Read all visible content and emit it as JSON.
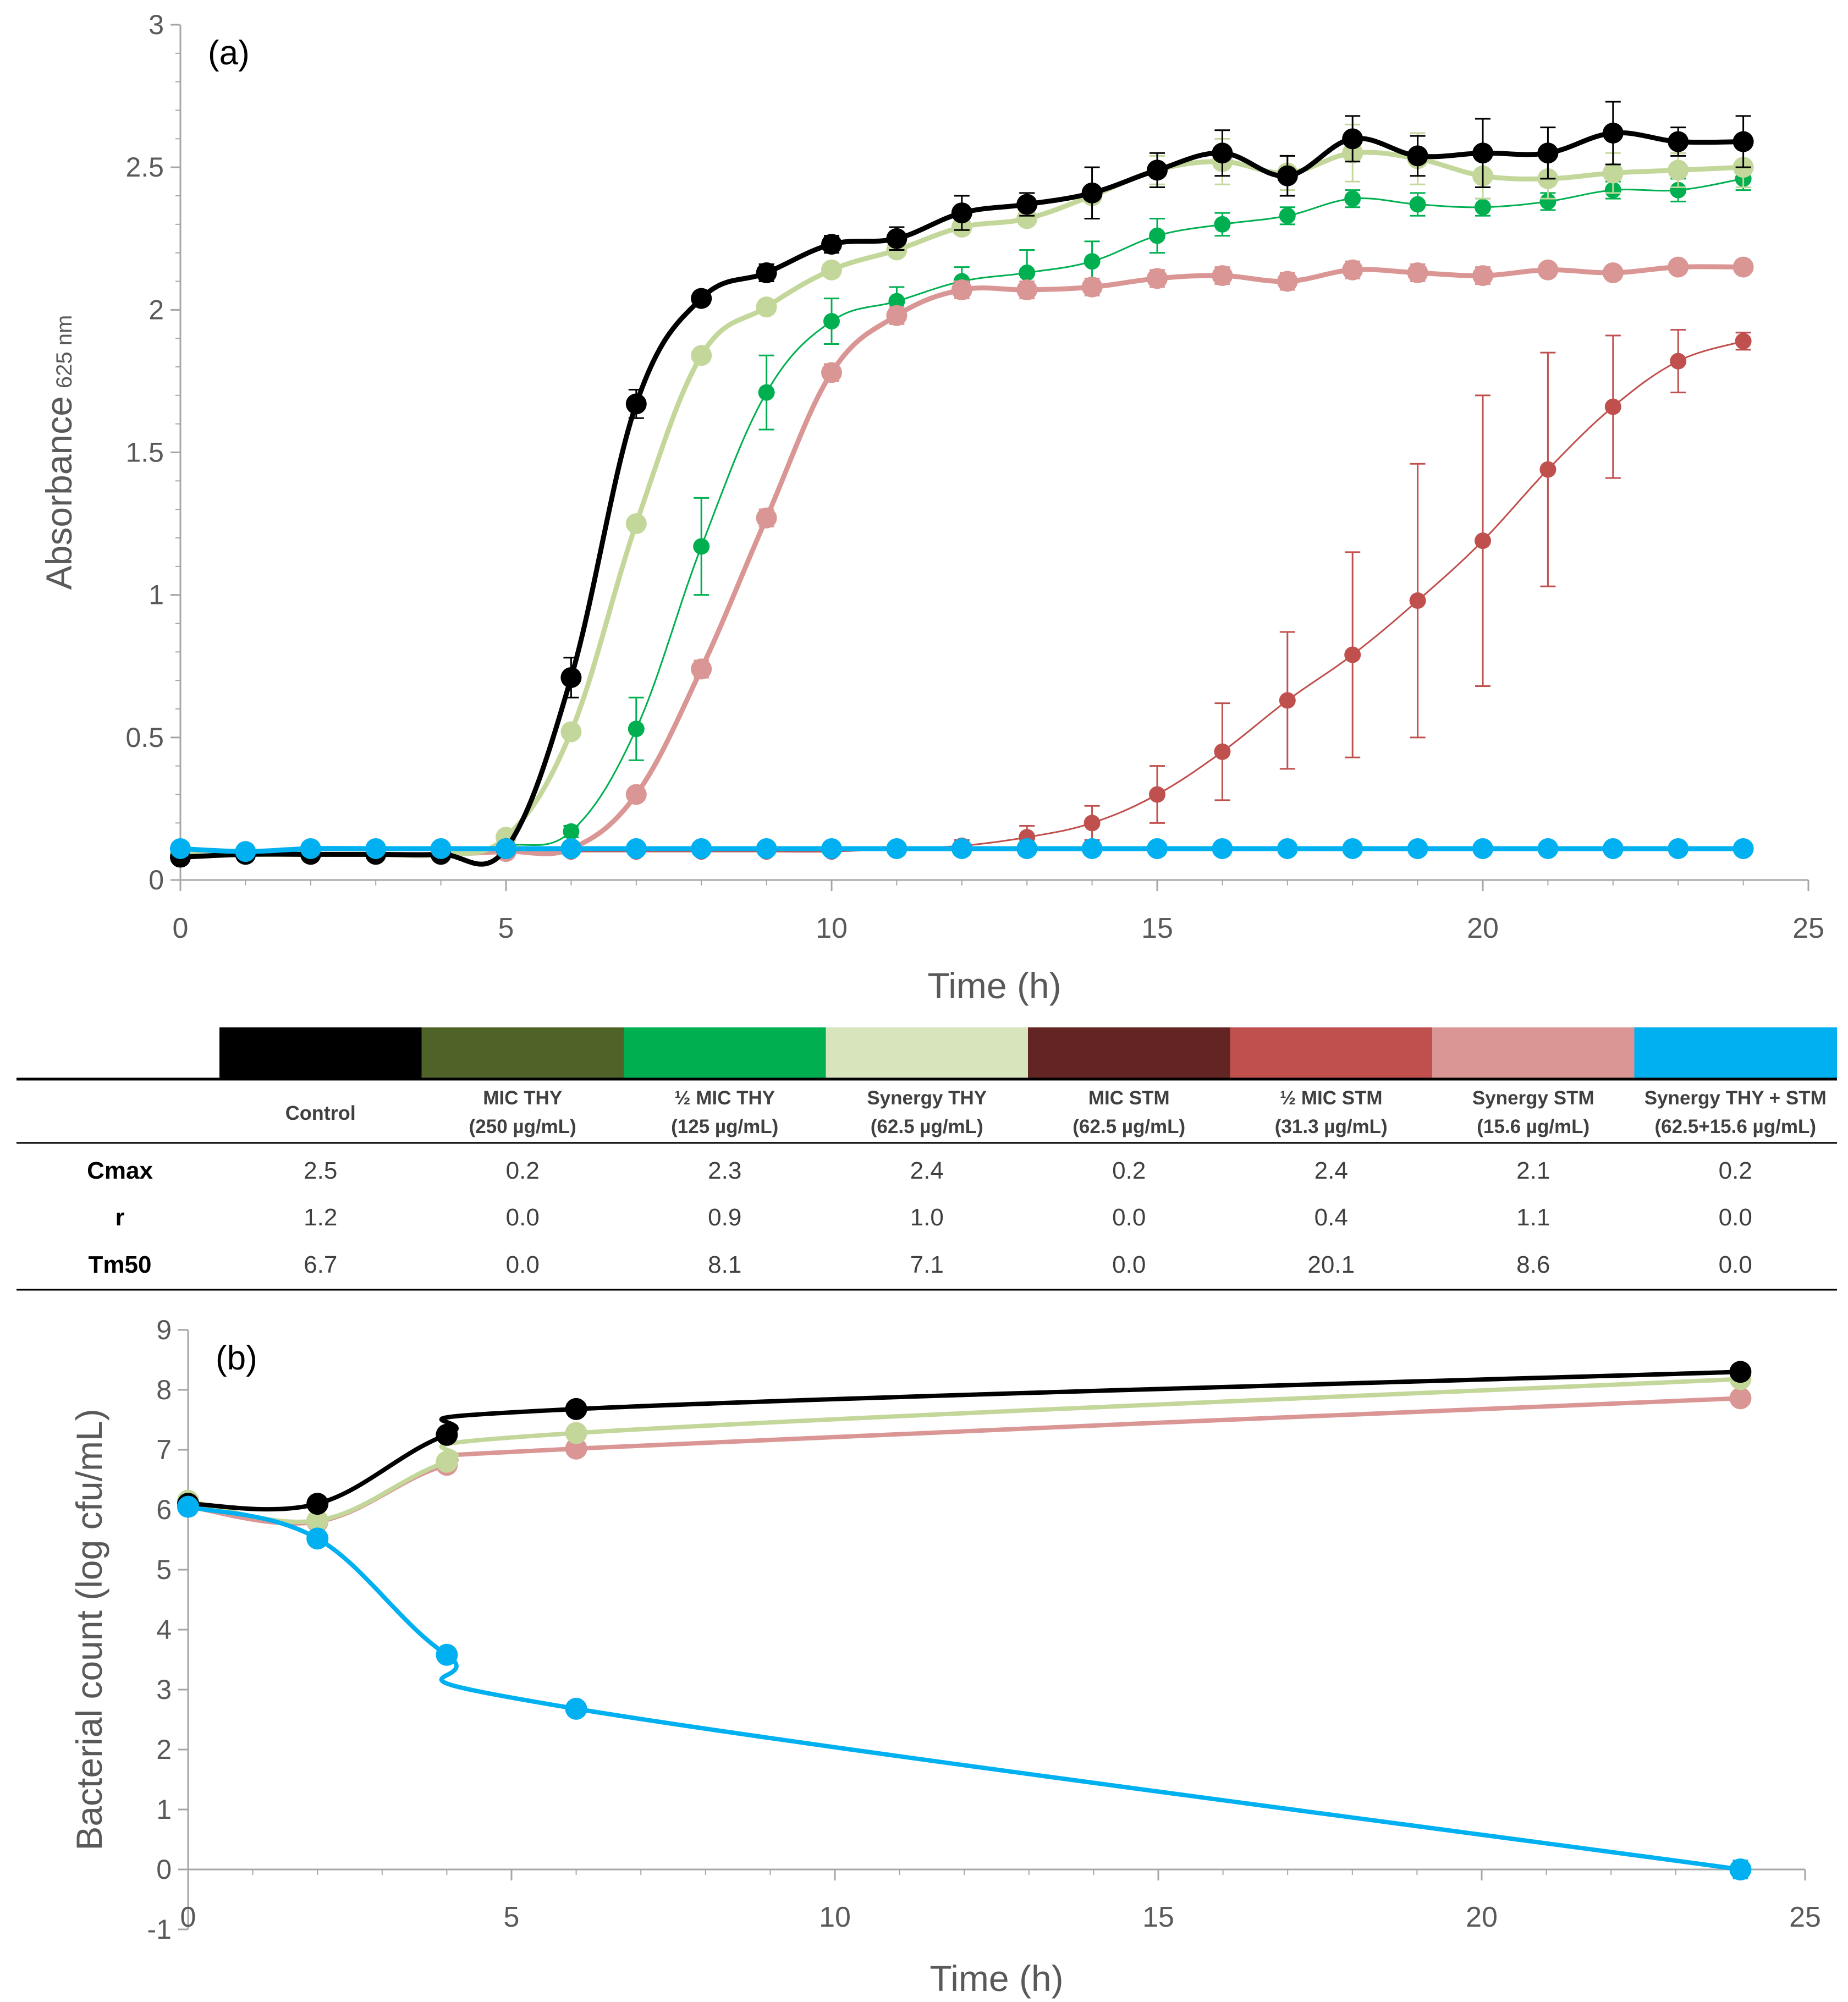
{
  "chart_data": [
    {
      "type": "line",
      "panel_label": "(a)",
      "xlabel": "Time (h)",
      "ylabel": "Absorbance",
      "ylabel_sub": "625 nm",
      "xlim": [
        0,
        25
      ],
      "ylim": [
        0,
        3
      ],
      "xticks": [
        "0",
        "5",
        "10",
        "15",
        "20",
        "25"
      ],
      "yticks": [
        "0",
        "0.5",
        "1",
        "1.5",
        "2",
        "2.5",
        "3"
      ],
      "x": [
        0,
        1,
        2,
        3,
        4,
        5,
        6,
        7,
        8,
        9,
        10,
        11,
        12,
        13,
        14,
        15,
        16,
        17,
        18,
        19,
        20,
        21,
        22,
        23,
        24
      ],
      "series": [
        {
          "name": "Half MIC STM",
          "color": "#c0504d",
          "thick": false,
          "marker": 15,
          "values": [
            0.09,
            0.09,
            0.09,
            0.09,
            0.09,
            0.1,
            0.1,
            0.1,
            0.1,
            0.1,
            0.1,
            0.11,
            0.12,
            0.15,
            0.2,
            0.3,
            0.45,
            0.63,
            0.79,
            0.98,
            1.19,
            1.44,
            1.66,
            1.82,
            1.89
          ],
          "errors": [
            0,
            0,
            0,
            0,
            0,
            0,
            0,
            0,
            0,
            0,
            0,
            0,
            0.02,
            0.04,
            0.06,
            0.1,
            0.17,
            0.24,
            0.36,
            0.48,
            0.51,
            0.41,
            0.25,
            0.11,
            0.03
          ]
        },
        {
          "name": "Half MIC THY",
          "color": "#00b050",
          "thick": false,
          "marker": 15,
          "values": [
            0.09,
            0.09,
            0.09,
            0.09,
            0.09,
            0.12,
            0.17,
            0.53,
            1.17,
            1.71,
            1.96,
            2.03,
            2.1,
            2.13,
            2.17,
            2.26,
            2.3,
            2.33,
            2.39,
            2.37,
            2.36,
            2.38,
            2.42,
            2.42,
            2.46
          ],
          "errors": [
            0,
            0,
            0,
            0,
            0,
            0,
            0.02,
            0.11,
            0.17,
            0.13,
            0.08,
            0.05,
            0.05,
            0.08,
            0.07,
            0.06,
            0.04,
            0.03,
            0.03,
            0.04,
            0.03,
            0.03,
            0.03,
            0.04,
            0.04
          ]
        },
        {
          "name": "Synergy STM",
          "color": "#da9694",
          "thick": true,
          "marker": 19,
          "values": [
            0.09,
            0.09,
            0.09,
            0.09,
            0.09,
            0.1,
            0.11,
            0.3,
            0.74,
            1.27,
            1.78,
            1.98,
            2.07,
            2.07,
            2.08,
            2.11,
            2.12,
            2.1,
            2.14,
            2.13,
            2.12,
            2.14,
            2.13,
            2.15,
            2.15
          ],
          "errors": [
            0,
            0,
            0,
            0,
            0,
            0,
            0,
            0,
            0.03,
            0.03,
            0.03,
            0.03,
            0.03,
            0.03,
            0.03,
            0.03,
            0.03,
            0.03,
            0.03,
            0.03,
            0.03,
            0.02,
            0.02,
            0.02,
            0.02
          ]
        },
        {
          "name": "Synergy THY",
          "color": "#c4d79b",
          "thick": true,
          "marker": 19,
          "values": [
            0.09,
            0.09,
            0.09,
            0.09,
            0.09,
            0.15,
            0.52,
            1.25,
            1.84,
            2.01,
            2.14,
            2.21,
            2.29,
            2.32,
            2.4,
            2.49,
            2.52,
            2.48,
            2.55,
            2.53,
            2.47,
            2.46,
            2.48,
            2.49,
            2.5
          ],
          "errors": [
            0,
            0,
            0,
            0,
            0,
            0,
            0,
            0,
            0,
            0,
            0,
            0,
            0,
            0,
            0,
            0.05,
            0.08,
            0.06,
            0.1,
            0.09,
            0.08,
            0.07,
            0.07,
            0.06,
            0.07
          ]
        },
        {
          "name": "Control",
          "color": "#000000",
          "thick": true,
          "marker": 19,
          "values": [
            0.08,
            0.09,
            0.09,
            0.09,
            0.09,
            0.11,
            0.71,
            1.67,
            2.04,
            2.13,
            2.23,
            2.25,
            2.34,
            2.37,
            2.41,
            2.49,
            2.55,
            2.47,
            2.6,
            2.54,
            2.55,
            2.55,
            2.62,
            2.59,
            2.59
          ],
          "errors": [
            0,
            0,
            0,
            0,
            0,
            0,
            0.07,
            0.05,
            0.02,
            0.03,
            0.03,
            0.04,
            0.06,
            0.04,
            0.09,
            0.06,
            0.08,
            0.07,
            0.08,
            0.07,
            0.12,
            0.09,
            0.11,
            0.05,
            0.09
          ]
        },
        {
          "name": "Synergy THY + STM",
          "color": "#00b0f0",
          "thick": true,
          "marker": 19,
          "values": [
            0.11,
            0.1,
            0.11,
            0.11,
            0.11,
            0.11,
            0.11,
            0.11,
            0.11,
            0.11,
            0.11,
            0.11,
            0.11,
            0.11,
            0.11,
            0.11,
            0.11,
            0.11,
            0.11,
            0.11,
            0.11,
            0.11,
            0.11,
            0.11,
            0.11
          ],
          "errors": [
            0,
            0,
            0,
            0,
            0,
            0,
            0,
            0,
            0,
            0,
            0,
            0,
            0,
            0,
            0,
            0,
            0,
            0,
            0,
            0,
            0,
            0,
            0,
            0,
            0
          ]
        }
      ]
    },
    {
      "type": "line",
      "panel_label": "(b)",
      "xlabel": "Time (h)",
      "ylabel": "Bacterial count (log cfu/mL)",
      "xlim": [
        0,
        25
      ],
      "ylim": [
        -1,
        9
      ],
      "xticks": [
        "0",
        "5",
        "10",
        "15",
        "20",
        "25"
      ],
      "yticks": [
        "-1",
        "0",
        "1",
        "2",
        "3",
        "4",
        "5",
        "6",
        "7",
        "8",
        "9"
      ],
      "x": [
        0,
        2,
        4,
        6,
        24
      ],
      "series": [
        {
          "name": "Synergy STM",
          "color": "#da9694",
          "values": [
            6.05,
            5.8,
            6.75,
            7.02,
            7.86
          ],
          "errors": [
            0,
            0,
            0,
            0,
            0
          ]
        },
        {
          "name": "Synergy THY",
          "color": "#c4d79b",
          "values": [
            6.15,
            5.82,
            6.8,
            7.28,
            8.18
          ],
          "errors": [
            0,
            0,
            0,
            0,
            0
          ]
        },
        {
          "name": "Control",
          "color": "#000000",
          "values": [
            6.1,
            6.1,
            7.25,
            7.68,
            8.3
          ],
          "errors": [
            0,
            0.12,
            0.12,
            0,
            0
          ]
        },
        {
          "name": "Synergy THY + STM",
          "color": "#00b0f0",
          "values": [
            6.05,
            5.52,
            3.58,
            2.68,
            0.0
          ],
          "errors": [
            0,
            0,
            0,
            0,
            0.15
          ]
        }
      ]
    }
  ],
  "legend_table": {
    "colors": [
      "#000000",
      "#4f6228",
      "#00b050",
      "#d8e4bc",
      "#632523",
      "#c0504d",
      "#da9694",
      "#00b0f0"
    ],
    "headers": [
      [
        "Control",
        ""
      ],
      [
        "MIC THY",
        "(250 µg/mL)"
      ],
      [
        "½ MIC THY",
        "(125 µg/mL)"
      ],
      [
        "Synergy THY",
        "(62.5 µg/mL)"
      ],
      [
        "MIC STM",
        "(62.5 µg/mL)"
      ],
      [
        "½ MIC STM",
        "(31.3 µg/mL)"
      ],
      [
        "Synergy STM",
        "(15.6 µg/mL)"
      ],
      [
        "Synergy THY + STM",
        "(62.5+15.6 µg/mL)"
      ]
    ],
    "rows": [
      {
        "label": "Cmax",
        "values": [
          "2.5",
          "0.2",
          "2.3",
          "2.4",
          "0.2",
          "2.4",
          "2.1",
          "0.2"
        ]
      },
      {
        "label": "r",
        "values": [
          "1.2",
          "0.0",
          "0.9",
          "1.0",
          "0.0",
          "0.4",
          "1.1",
          "0.0"
        ]
      },
      {
        "label": "Tm50",
        "values": [
          "6.7",
          "0.0",
          "8.1",
          "7.1",
          "0.0",
          "20.1",
          "8.6",
          "0.0"
        ]
      }
    ]
  }
}
